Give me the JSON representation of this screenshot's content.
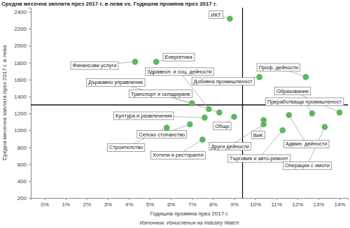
{
  "chart_data": {
    "type": "scatter",
    "title": "Средна месечна заплата през 2017 г. в лева vs. Годишна промяна през 2017 г.",
    "x_label": "Годишна промяна през 2017 г.",
    "y_label": "Средна месечна заплата през 2017 г. в лева",
    "source": "Източник: Изчисления на Industry Watch",
    "point_labels": [
      "ИКТ",
      "Финансови услуги",
      "Енергетика",
      "Здравеоп. и соц. дейности",
      "Държавно управление",
      "Добивна промишленост",
      "Проф. дейности",
      "Транспорт и складиране",
      "Общо",
      "Култура и развлечения",
      "Селско стопанство",
      "Строителство",
      "Хотели и ресторанти",
      "Образование",
      "Преработваща промишленост",
      "Админ. дейности",
      "ВиК",
      "Други дейности",
      "Търговия и авто-ремонт",
      "Операции с имоти"
    ],
    "x": [
      8.8,
      4.3,
      5.3,
      7.8,
      7.0,
      10.2,
      12.4,
      8.3,
      9.0,
      7.6,
      6.9,
      5.8,
      7.5,
      14.0,
      12.7,
      11.6,
      10.4,
      10.4,
      11.3,
      13.3
    ],
    "values": [
      2320,
      1810,
      1810,
      1250,
      1320,
      1630,
      1630,
      1210,
      1160,
      1150,
      1070,
      1030,
      890,
      1210,
      1200,
      1180,
      1120,
      1070,
      1000,
      1040
    ],
    "color": "#5cb85c",
    "marker": "circle",
    "reference_lines": {
      "x": 9.4,
      "y": 1300
    },
    "xlim": [
      -0.65,
      14.4
    ],
    "xticks": [
      {
        "value": 0,
        "label": "0%"
      },
      {
        "value": 1,
        "label": "1%"
      },
      {
        "value": 2,
        "label": "2%"
      },
      {
        "value": 3,
        "label": "3%"
      },
      {
        "value": 4,
        "label": "4%"
      },
      {
        "value": 5,
        "label": "5%"
      },
      {
        "value": 6,
        "label": "6%"
      },
      {
        "value": 7,
        "label": "7%"
      },
      {
        "value": 8,
        "label": "8%"
      },
      {
        "value": 9,
        "label": "9%"
      },
      {
        "value": 10,
        "label": "10%"
      },
      {
        "value": 11,
        "label": "11%"
      },
      {
        "value": 12,
        "label": "12%"
      },
      {
        "value": 13,
        "label": "13%"
      },
      {
        "value": 14,
        "label": "14%"
      }
    ],
    "ylim": [
      200,
      2450
    ],
    "yticks": [
      200,
      400,
      600,
      800,
      1000,
      1200,
      1400,
      1600,
      1800,
      2000,
      2200,
      2400
    ],
    "grid": false
  }
}
